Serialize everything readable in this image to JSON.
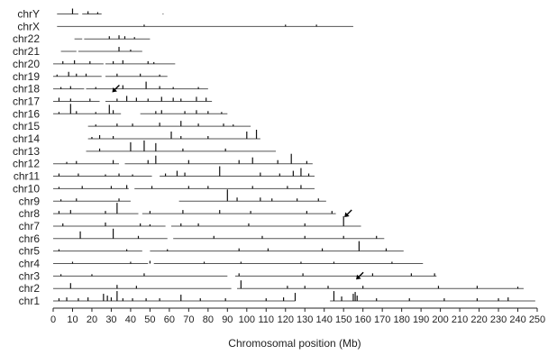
{
  "chart_data": {
    "type": "chromosome-ideogram",
    "title": "",
    "xlabel": "Chromosomal position (Mb)",
    "ylabel": "",
    "xlim": [
      0,
      250
    ],
    "xticks": [
      0,
      10,
      20,
      30,
      40,
      50,
      60,
      70,
      80,
      90,
      100,
      110,
      120,
      130,
      140,
      150,
      160,
      170,
      180,
      190,
      200,
      210,
      220,
      230,
      240,
      250
    ],
    "colors": {
      "line": "#555555",
      "peak": "#111111"
    },
    "chromosomes": [
      {
        "name": "chrY",
        "length": 59.4,
        "segments": [
          [
            2,
            13
          ],
          [
            15,
            25
          ],
          [
            56.5,
            57
          ]
        ]
      },
      {
        "name": "chrX",
        "length": 155.3,
        "segments": [
          [
            2,
            155
          ]
        ]
      },
      {
        "name": "chr22",
        "length": 51.3,
        "segments": [
          [
            11,
            15
          ],
          [
            16,
            50
          ]
        ]
      },
      {
        "name": "chr21",
        "length": 48.1,
        "segments": [
          [
            4,
            12
          ],
          [
            13,
            46
          ]
        ]
      },
      {
        "name": "chr20",
        "length": 63.0,
        "segments": [
          [
            0,
            26
          ],
          [
            27,
            63
          ]
        ]
      },
      {
        "name": "chr19",
        "length": 59.1,
        "segments": [
          [
            0,
            25
          ],
          [
            27,
            59
          ]
        ]
      },
      {
        "name": "chr18",
        "length": 78.1,
        "segments": [
          [
            0,
            16
          ],
          [
            17,
            80
          ]
        ]
      },
      {
        "name": "chr17",
        "length": 81.2,
        "segments": [
          [
            0,
            24
          ],
          [
            27,
            82
          ]
        ]
      },
      {
        "name": "chr16",
        "length": 90.4,
        "segments": [
          [
            0,
            35
          ],
          [
            45,
            90
          ]
        ]
      },
      {
        "name": "chr15",
        "length": 102.5,
        "segments": [
          [
            18,
            102
          ]
        ]
      },
      {
        "name": "chr14",
        "length": 107.3,
        "segments": [
          [
            18,
            107
          ]
        ]
      },
      {
        "name": "chr13",
        "length": 115.2,
        "segments": [
          [
            17,
            115
          ]
        ]
      },
      {
        "name": "chr12",
        "length": 133.9,
        "segments": [
          [
            0,
            34
          ],
          [
            37,
            134
          ]
        ]
      },
      {
        "name": "chr11",
        "length": 135.0,
        "segments": [
          [
            0,
            51
          ],
          [
            55,
            135
          ]
        ]
      },
      {
        "name": "chr10",
        "length": 135.5,
        "segments": [
          [
            0,
            39
          ],
          [
            42,
            135
          ]
        ]
      },
      {
        "name": "chr9",
        "length": 141.2,
        "segments": [
          [
            0,
            40
          ],
          [
            65,
            141
          ]
        ]
      },
      {
        "name": "chr8",
        "length": 146.4,
        "segments": [
          [
            0,
            44
          ],
          [
            46,
            146
          ]
        ]
      },
      {
        "name": "chr7",
        "length": 159.1,
        "segments": [
          [
            0,
            58
          ],
          [
            61,
            159
          ]
        ]
      },
      {
        "name": "chr6",
        "length": 171.1,
        "segments": [
          [
            0,
            59
          ],
          [
            62,
            171
          ]
        ]
      },
      {
        "name": "chr5",
        "length": 180.9,
        "segments": [
          [
            0,
            46
          ],
          [
            50,
            181
          ]
        ]
      },
      {
        "name": "chr4",
        "length": 191.2,
        "segments": [
          [
            0,
            49
          ],
          [
            52,
            191
          ]
        ]
      },
      {
        "name": "chr3",
        "length": 198.0,
        "segments": [
          [
            0,
            90
          ],
          [
            94,
            198
          ]
        ]
      },
      {
        "name": "chr2",
        "length": 243.2,
        "segments": [
          [
            0,
            92
          ],
          [
            95,
            243
          ]
        ]
      },
      {
        "name": "chr1",
        "length": 249.3,
        "segments": [
          [
            0,
            125
          ],
          [
            143,
            249
          ]
        ]
      }
    ],
    "peaks": {
      "chrY": [
        [
          10,
          6
        ],
        [
          18,
          3
        ],
        [
          23,
          2
        ]
      ],
      "chrX": [
        [
          47,
          2
        ],
        [
          120,
          2
        ],
        [
          136,
          2
        ]
      ],
      "chr22": [
        [
          29,
          3
        ],
        [
          34,
          4
        ],
        [
          37,
          3
        ],
        [
          42,
          2
        ]
      ],
      "chr21": [
        [
          34,
          5
        ],
        [
          40,
          2
        ]
      ],
      "chr20": [
        [
          5,
          3
        ],
        [
          11,
          4
        ],
        [
          19,
          3
        ],
        [
          31,
          3
        ],
        [
          36,
          4
        ],
        [
          49,
          3
        ],
        [
          52,
          2
        ]
      ],
      "chr19": [
        [
          2,
          2
        ],
        [
          8,
          5
        ],
        [
          12,
          3
        ],
        [
          17,
          3
        ],
        [
          33,
          3
        ],
        [
          45,
          3
        ],
        [
          55,
          2
        ]
      ],
      "chr18": [
        [
          4,
          2
        ],
        [
          9,
          3
        ],
        [
          22,
          2
        ],
        [
          36,
          4
        ],
        [
          48,
          8
        ],
        [
          55,
          3
        ],
        [
          62,
          2
        ],
        [
          75,
          2
        ]
      ],
      "chr17": [
        [
          3,
          4
        ],
        [
          9,
          3
        ],
        [
          19,
          3
        ],
        [
          33,
          3
        ],
        [
          38,
          6
        ],
        [
          43,
          4
        ],
        [
          49,
          3
        ],
        [
          56,
          5
        ],
        [
          62,
          4
        ],
        [
          66,
          3
        ],
        [
          74,
          5
        ],
        [
          79,
          4
        ]
      ],
      "chr16": [
        [
          3,
          2
        ],
        [
          9,
          11
        ],
        [
          12,
          3
        ],
        [
          22,
          2
        ],
        [
          29,
          10
        ],
        [
          31,
          4
        ],
        [
          53,
          3
        ],
        [
          56,
          4
        ],
        [
          68,
          3
        ],
        [
          74,
          4
        ],
        [
          80,
          3
        ],
        [
          87,
          2
        ]
      ],
      "chr15": [
        [
          22,
          2
        ],
        [
          33,
          3
        ],
        [
          41,
          3
        ],
        [
          55,
          4
        ],
        [
          66,
          6
        ],
        [
          75,
          3
        ],
        [
          88,
          3
        ],
        [
          93,
          2
        ]
      ],
      "chr14": [
        [
          20,
          2
        ],
        [
          24,
          4
        ],
        [
          31,
          3
        ],
        [
          61,
          8
        ],
        [
          66,
          3
        ],
        [
          80,
          3
        ],
        [
          100,
          8
        ],
        [
          105,
          10
        ]
      ],
      "chr13": [
        [
          24,
          3
        ],
        [
          40,
          10
        ],
        [
          47,
          12
        ],
        [
          53,
          9
        ],
        [
          67,
          3
        ],
        [
          89,
          3
        ]
      ],
      "chr12": [
        [
          7,
          2
        ],
        [
          12,
          3
        ],
        [
          31,
          4
        ],
        [
          49,
          4
        ],
        [
          53,
          9
        ],
        [
          70,
          4
        ],
        [
          96,
          4
        ],
        [
          103,
          7
        ],
        [
          116,
          4
        ],
        [
          123,
          11
        ],
        [
          131,
          3
        ]
      ],
      "chr11": [
        [
          3,
          3
        ],
        [
          13,
          3
        ],
        [
          27,
          2
        ],
        [
          34,
          3
        ],
        [
          41,
          2
        ],
        [
          58,
          3
        ],
        [
          64,
          6
        ],
        [
          68,
          4
        ],
        [
          86,
          11
        ],
        [
          107,
          4
        ],
        [
          117,
          3
        ],
        [
          124,
          6
        ],
        [
          128,
          9
        ],
        [
          132,
          3
        ]
      ],
      "chr10": [
        [
          3,
          2
        ],
        [
          15,
          3
        ],
        [
          30,
          3
        ],
        [
          38,
          4
        ],
        [
          51,
          3
        ],
        [
          70,
          3
        ],
        [
          80,
          3
        ],
        [
          103,
          3
        ],
        [
          121,
          3
        ],
        [
          128,
          4
        ]
      ],
      "chr9": [
        [
          4,
          2
        ],
        [
          12,
          3
        ],
        [
          34,
          3
        ],
        [
          90,
          13
        ],
        [
          95,
          4
        ],
        [
          107,
          4
        ],
        [
          113,
          3
        ],
        [
          126,
          3
        ],
        [
          137,
          3
        ]
      ],
      "chr8": [
        [
          3,
          3
        ],
        [
          9,
          4
        ],
        [
          27,
          3
        ],
        [
          33,
          12
        ],
        [
          50,
          3
        ],
        [
          67,
          4
        ],
        [
          86,
          4
        ],
        [
          102,
          3
        ],
        [
          131,
          3
        ],
        [
          144,
          3
        ]
      ],
      "chr7": [
        [
          5,
          3
        ],
        [
          27,
          4
        ],
        [
          45,
          3
        ],
        [
          50,
          2
        ],
        [
          66,
          3
        ],
        [
          75,
          3
        ],
        [
          101,
          3
        ],
        [
          130,
          3
        ],
        [
          150,
          11
        ]
      ],
      "chr6": [
        [
          14,
          8
        ],
        [
          31,
          11
        ],
        [
          44,
          3
        ],
        [
          83,
          3
        ],
        [
          108,
          3
        ],
        [
          130,
          3
        ],
        [
          150,
          3
        ],
        [
          167,
          3
        ]
      ],
      "chr5": [
        [
          3,
          2
        ],
        [
          38,
          2
        ],
        [
          59,
          2
        ],
        [
          96,
          3
        ],
        [
          111,
          3
        ],
        [
          139,
          3
        ],
        [
          158,
          11
        ],
        [
          172,
          3
        ]
      ],
      "chr4": [
        [
          10,
          2
        ],
        [
          40,
          2
        ],
        [
          50,
          3
        ],
        [
          78,
          2
        ],
        [
          97,
          2
        ],
        [
          128,
          2
        ],
        [
          145,
          2
        ],
        [
          175,
          2
        ]
      ],
      "chr3": [
        [
          4,
          2
        ],
        [
          20,
          2
        ],
        [
          47,
          3
        ],
        [
          96,
          3
        ],
        [
          129,
          3
        ],
        [
          165,
          3
        ],
        [
          185,
          3
        ],
        [
          197,
          3
        ]
      ],
      "chr2": [
        [
          9,
          6
        ],
        [
          33,
          4
        ],
        [
          43,
          3
        ],
        [
          97,
          9
        ],
        [
          121,
          3
        ],
        [
          130,
          3
        ],
        [
          142,
          3
        ],
        [
          160,
          3
        ],
        [
          199,
          3
        ],
        [
          219,
          3
        ],
        [
          240,
          2
        ]
      ],
      "chr1": [
        [
          3,
          3
        ],
        [
          7,
          4
        ],
        [
          13,
          3
        ],
        [
          18,
          4
        ],
        [
          26,
          8
        ],
        [
          28,
          6
        ],
        [
          30,
          4
        ],
        [
          33,
          11
        ],
        [
          36,
          3
        ],
        [
          41,
          3
        ],
        [
          48,
          3
        ],
        [
          55,
          3
        ],
        [
          66,
          7
        ],
        [
          76,
          3
        ],
        [
          89,
          3
        ],
        [
          110,
          3
        ],
        [
          119,
          4
        ],
        [
          125,
          9
        ],
        [
          145,
          11
        ],
        [
          149,
          5
        ],
        [
          155,
          8
        ],
        [
          156,
          10
        ],
        [
          157,
          6
        ],
        [
          167,
          3
        ],
        [
          184,
          3
        ],
        [
          202,
          3
        ],
        [
          219,
          3
        ],
        [
          230,
          3
        ],
        [
          235,
          4
        ]
      ]
    },
    "arrows": [
      {
        "chr": "chr17",
        "position": 30
      },
      {
        "chr": "chr7",
        "position": 150
      },
      {
        "chr": "chr2",
        "position": 156
      }
    ]
  }
}
